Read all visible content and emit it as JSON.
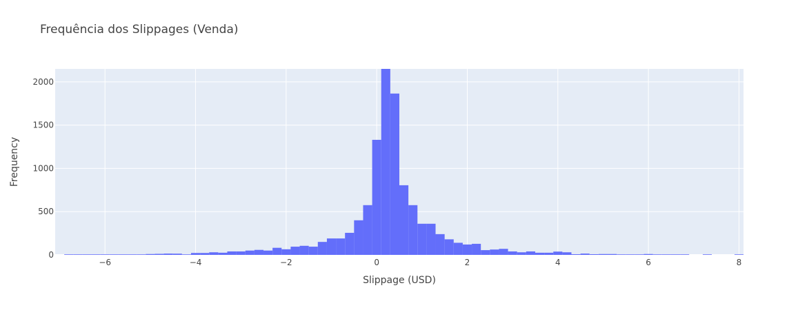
{
  "chart_data": {
    "type": "bar",
    "title": "Frequência dos Slippages (Venda)",
    "xlabel": "Slippage (USD)",
    "ylabel": "Frequency",
    "xlim": [
      -7.1,
      8.1
    ],
    "ylim": [
      0,
      2150
    ],
    "bin_width": 0.2,
    "xticks": [
      -6,
      -4,
      -2,
      0,
      2,
      4,
      6,
      8
    ],
    "xtick_labels": [
      "−6",
      "−4",
      "−2",
      "0",
      "2",
      "4",
      "6",
      "8"
    ],
    "yticks": [
      0,
      500,
      1000,
      1500,
      2000
    ],
    "ytick_labels": [
      "0",
      "500",
      "1000",
      "1500",
      "2000"
    ],
    "grid": true,
    "bar_color": "#636efa",
    "plot_bg": "#e5ecf6",
    "bins": [
      {
        "x0": -6.9,
        "count": 4
      },
      {
        "x0": -6.7,
        "count": 3
      },
      {
        "x0": -6.5,
        "count": 3
      },
      {
        "x0": -6.3,
        "count": 4
      },
      {
        "x0": -6.1,
        "count": 3
      },
      {
        "x0": -5.9,
        "count": 6
      },
      {
        "x0": -5.7,
        "count": 4
      },
      {
        "x0": -5.5,
        "count": 5
      },
      {
        "x0": -5.3,
        "count": 4
      },
      {
        "x0": -5.1,
        "count": 10
      },
      {
        "x0": -4.9,
        "count": 12
      },
      {
        "x0": -4.7,
        "count": 15
      },
      {
        "x0": -4.5,
        "count": 14
      },
      {
        "x0": -4.3,
        "count": 3
      },
      {
        "x0": -4.1,
        "count": 22
      },
      {
        "x0": -3.9,
        "count": 22
      },
      {
        "x0": -3.7,
        "count": 30
      },
      {
        "x0": -3.5,
        "count": 25
      },
      {
        "x0": -3.3,
        "count": 40
      },
      {
        "x0": -3.1,
        "count": 40
      },
      {
        "x0": -2.9,
        "count": 50
      },
      {
        "x0": -2.7,
        "count": 58
      },
      {
        "x0": -2.5,
        "count": 50
      },
      {
        "x0": -2.3,
        "count": 82
      },
      {
        "x0": -2.1,
        "count": 65
      },
      {
        "x0": -1.9,
        "count": 95
      },
      {
        "x0": -1.7,
        "count": 105
      },
      {
        "x0": -1.5,
        "count": 95
      },
      {
        "x0": -1.3,
        "count": 150
      },
      {
        "x0": -1.1,
        "count": 190
      },
      {
        "x0": -0.9,
        "count": 190
      },
      {
        "x0": -0.7,
        "count": 255
      },
      {
        "x0": -0.5,
        "count": 400
      },
      {
        "x0": -0.3,
        "count": 575
      },
      {
        "x0": -0.1,
        "count": 1330
      },
      {
        "x0": 0.1,
        "count": 2150
      },
      {
        "x0": 0.3,
        "count": 1865
      },
      {
        "x0": 0.5,
        "count": 805
      },
      {
        "x0": 0.7,
        "count": 575
      },
      {
        "x0": 0.9,
        "count": 360
      },
      {
        "x0": 1.1,
        "count": 360
      },
      {
        "x0": 1.3,
        "count": 240
      },
      {
        "x0": 1.5,
        "count": 180
      },
      {
        "x0": 1.7,
        "count": 140
      },
      {
        "x0": 1.9,
        "count": 120
      },
      {
        "x0": 2.1,
        "count": 128
      },
      {
        "x0": 2.3,
        "count": 55
      },
      {
        "x0": 2.5,
        "count": 62
      },
      {
        "x0": 2.7,
        "count": 70
      },
      {
        "x0": 2.9,
        "count": 40
      },
      {
        "x0": 3.1,
        "count": 30
      },
      {
        "x0": 3.3,
        "count": 40
      },
      {
        "x0": 3.5,
        "count": 25
      },
      {
        "x0": 3.7,
        "count": 25
      },
      {
        "x0": 3.9,
        "count": 38
      },
      {
        "x0": 4.1,
        "count": 30
      },
      {
        "x0": 4.3,
        "count": 8
      },
      {
        "x0": 4.5,
        "count": 15
      },
      {
        "x0": 4.7,
        "count": 8
      },
      {
        "x0": 4.9,
        "count": 10
      },
      {
        "x0": 5.1,
        "count": 10
      },
      {
        "x0": 5.3,
        "count": 3
      },
      {
        "x0": 5.5,
        "count": 3
      },
      {
        "x0": 5.7,
        "count": 3
      },
      {
        "x0": 5.9,
        "count": 10
      },
      {
        "x0": 6.1,
        "count": 3
      },
      {
        "x0": 6.3,
        "count": 3
      },
      {
        "x0": 6.5,
        "count": 3
      },
      {
        "x0": 6.7,
        "count": 3
      },
      {
        "x0": 7.2,
        "count": 3
      },
      {
        "x0": 7.9,
        "count": 3
      }
    ]
  }
}
